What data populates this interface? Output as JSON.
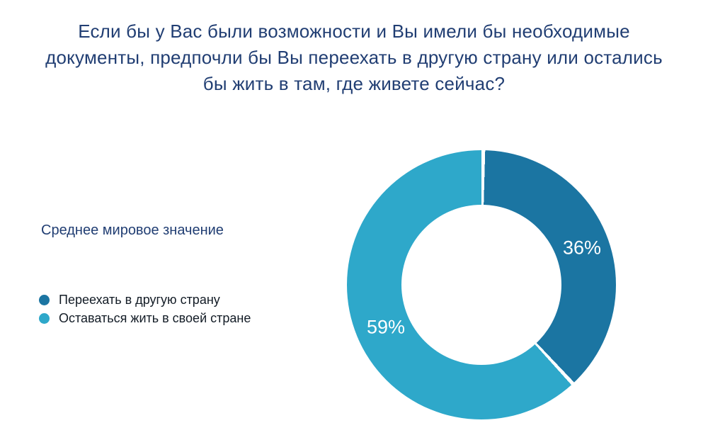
{
  "title": "Если бы у Вас были возможности и Вы имели бы необходимые документы, предпочли бы Вы переехать в другую страну или остались бы жить в там, где живете сейчас?",
  "subtitle": "Среднее мировое значение",
  "legend": [
    {
      "label": "Переехать в другую страну",
      "color": "#1b75a2"
    },
    {
      "label": "Оставаться жить в своей стране",
      "color": "#2ea8ca"
    }
  ],
  "chart_data": {
    "type": "pie",
    "donut": true,
    "title": "Если бы у Вас были возможности и Вы имели бы необходимые документы, предпочли бы Вы переехать в другую страну или остались бы жить в там, где живете сейчас?",
    "subtitle": "Среднее мировое значение",
    "categories": [
      "Переехать в другую страну",
      "Оставаться жить в своей стране"
    ],
    "values": [
      36,
      59
    ],
    "labels": [
      "36%",
      "59%"
    ],
    "colors": [
      "#1b75a2",
      "#2ea8ca"
    ],
    "start_angle": 0,
    "legend_position": "left"
  }
}
